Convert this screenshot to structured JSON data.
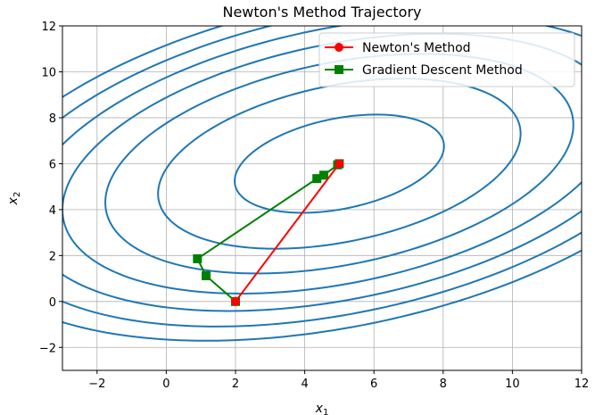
{
  "chart_data": {
    "type": "line",
    "title": "Newton's Method Trajectory",
    "xlabel_base": "x",
    "xlabel_sub": "1",
    "ylabel_base": "x",
    "ylabel_sub": "2",
    "xlim": [
      -3,
      12
    ],
    "ylim": [
      -3,
      12
    ],
    "xticks": [
      -2,
      0,
      2,
      4,
      6,
      8,
      10,
      12
    ],
    "yticks": [
      -2,
      0,
      2,
      4,
      6,
      8,
      10,
      12
    ],
    "xtick_labels": [
      "−2",
      "0",
      "2",
      "4",
      "6",
      "8",
      "10",
      "12"
    ],
    "ytick_labels": [
      "−2",
      "0",
      "2",
      "4",
      "6",
      "8",
      "10",
      "12"
    ],
    "grid": true,
    "legend_position": "top-right",
    "series": [
      {
        "name": "Newton's Method",
        "color": "#ff0000",
        "marker": "circle",
        "x": [
          2,
          5
        ],
        "y": [
          0,
          6
        ]
      },
      {
        "name": "Gradient Descent Method",
        "color": "#008000",
        "marker": "square",
        "x": [
          2,
          1.15,
          0.9,
          4.35,
          4.55,
          4.95,
          5.0
        ],
        "y": [
          0,
          1.12,
          1.86,
          5.35,
          5.5,
          5.95,
          6.0
        ]
      }
    ],
    "contours": {
      "color": "#1f77b4",
      "center": [
        5,
        6
      ],
      "quadratic_form": [
        1,
        -1,
        2
      ],
      "levels": [
        8,
        24,
        40,
        56,
        72,
        88,
        104
      ]
    }
  }
}
